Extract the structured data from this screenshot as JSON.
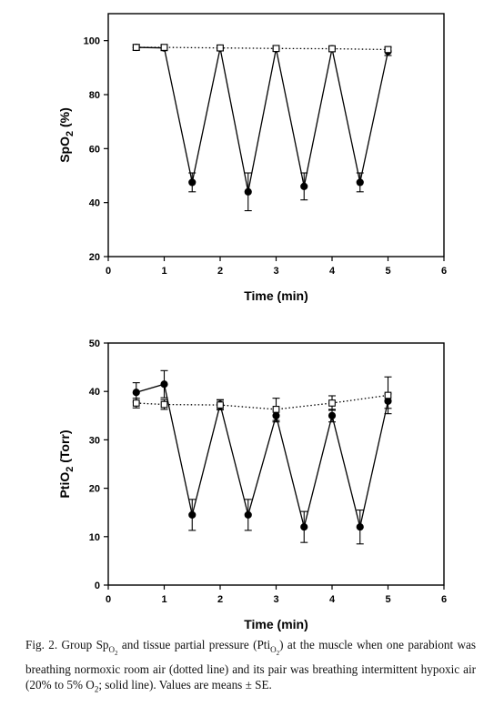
{
  "chart_data": [
    {
      "type": "line",
      "ylabel": "SpO",
      "ylabel_sub": "2",
      "ylabel_unit": " (%)",
      "xlabel": "Time (min)",
      "xlim": [
        0,
        6
      ],
      "ylim": [
        20,
        110
      ],
      "xticks": [
        0,
        1,
        2,
        3,
        4,
        5,
        6
      ],
      "yticks": [
        20,
        40,
        60,
        80,
        100
      ],
      "grid": false,
      "series": [
        {
          "style": "solid",
          "marker": "filled-circle",
          "points": [
            {
              "x": 0.5,
              "y": 97.5,
              "se": 1
            },
            {
              "x": 1,
              "y": 97.3,
              "se": 1
            },
            {
              "x": 1.5,
              "y": 47.5,
              "se": 3.5
            },
            {
              "x": 2,
              "y": 97.2,
              "se": 1
            },
            {
              "x": 2.5,
              "y": 44,
              "se": 7
            },
            {
              "x": 3,
              "y": 97,
              "se": 1
            },
            {
              "x": 3.5,
              "y": 46,
              "se": 5
            },
            {
              "x": 4,
              "y": 97,
              "se": 1
            },
            {
              "x": 4.5,
              "y": 47.5,
              "se": 3.5
            },
            {
              "x": 5,
              "y": 96,
              "se": 1.5
            }
          ]
        },
        {
          "style": "dotted",
          "marker": "open-square",
          "points": [
            {
              "x": 0.5,
              "y": 97.5,
              "se": 1
            },
            {
              "x": 1,
              "y": 97.5,
              "se": 1
            },
            {
              "x": 2,
              "y": 97.3,
              "se": 1
            },
            {
              "x": 3,
              "y": 97.1,
              "se": 1
            },
            {
              "x": 4,
              "y": 97,
              "se": 1
            },
            {
              "x": 5,
              "y": 96.7,
              "se": 1
            }
          ]
        }
      ]
    },
    {
      "type": "line",
      "ylabel": "PtiO",
      "ylabel_sub": "2",
      "ylabel_unit": " (Torr)",
      "xlabel": "Time (min)",
      "xlim": [
        0,
        6
      ],
      "ylim": [
        0,
        50
      ],
      "xticks": [
        0,
        1,
        2,
        3,
        4,
        5,
        6
      ],
      "yticks": [
        0,
        10,
        20,
        30,
        40,
        50
      ],
      "grid": false,
      "series": [
        {
          "style": "solid",
          "marker": "filled-circle",
          "points": [
            {
              "x": 0.5,
              "y": 39.8,
              "se": 2
            },
            {
              "x": 1,
              "y": 41.5,
              "se": 2.8
            },
            {
              "x": 1.5,
              "y": 14.5,
              "se": 3.2
            },
            {
              "x": 2,
              "y": 37.3,
              "se": 1
            },
            {
              "x": 2.5,
              "y": 14.5,
              "se": 3.2
            },
            {
              "x": 3,
              "y": 35,
              "se": 1.3
            },
            {
              "x": 3.5,
              "y": 12,
              "se": 3.2
            },
            {
              "x": 4,
              "y": 35,
              "se": 1.3
            },
            {
              "x": 4.5,
              "y": 12,
              "se": 3.5
            },
            {
              "x": 5,
              "y": 38,
              "se": 1.5
            }
          ]
        },
        {
          "style": "dotted",
          "marker": "open-square",
          "points": [
            {
              "x": 0.5,
              "y": 37.6,
              "se": 1
            },
            {
              "x": 1,
              "y": 37.3,
              "se": 1
            },
            {
              "x": 2,
              "y": 37.2,
              "se": 1
            },
            {
              "x": 3,
              "y": 36.3,
              "se": 2.3
            },
            {
              "x": 4,
              "y": 37.6,
              "se": 1.5
            },
            {
              "x": 5,
              "y": 39.2,
              "se": 3.8
            }
          ]
        }
      ]
    }
  ],
  "caption": {
    "part1": "Fig. 2. Group Sp",
    "sub1": "O",
    "sub1sub": "2",
    "part2": " and tissue partial pressure (Pti",
    "sub2": "O",
    "sub2sub": "2",
    "part3": ") at the muscle when one parabiont was breathing normoxic room air (dotted line) and its pair was breathing intermittent hypoxic air (20% to 5% O",
    "sub3": "2",
    "part4": "; solid line). Values are means ± SE."
  }
}
